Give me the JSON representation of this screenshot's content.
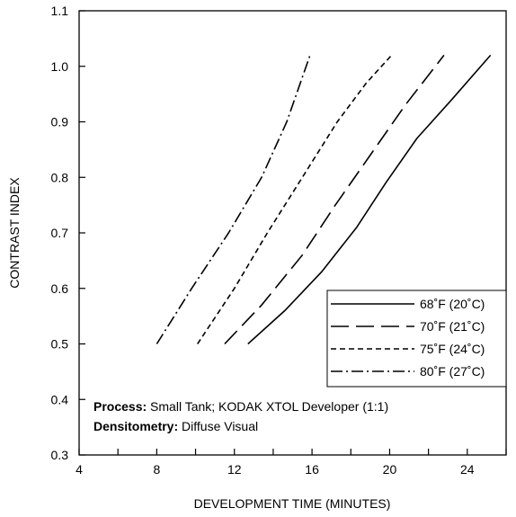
{
  "chart_data": {
    "type": "line",
    "title": "",
    "xlabel": "DEVELOPMENT TIME (MINUTES)",
    "ylabel": "CONTRAST INDEX",
    "xlim": [
      4,
      26
    ],
    "ylim": [
      0.3,
      1.1
    ],
    "x_ticks": [
      4,
      6,
      8,
      10,
      12,
      14,
      16,
      18,
      20,
      22,
      24,
      26
    ],
    "x_tick_labels": [
      "4",
      "",
      "8",
      "",
      "12",
      "",
      "16",
      "",
      "20",
      "",
      "24",
      ""
    ],
    "y_ticks": [
      0.3,
      0.4,
      0.5,
      0.6,
      0.7,
      0.8,
      0.9,
      1.0,
      1.1
    ],
    "y_tick_labels": [
      "0.3",
      "0.4",
      "0.5",
      "0.6",
      "0.7",
      "0.8",
      "0.9",
      "1.0",
      "1.1"
    ],
    "grid": false,
    "legend_position": "bottom-right",
    "series": [
      {
        "name": "68˚F (20˚C)",
        "style": "solid",
        "x": [
          12.7,
          14.6,
          16.5,
          18.3,
          19.8,
          21.4,
          23.2,
          25.2
        ],
        "y": [
          0.5,
          0.56,
          0.63,
          0.71,
          0.79,
          0.87,
          0.94,
          1.02
        ]
      },
      {
        "name": "70˚F (21˚C)",
        "style": "long-dash",
        "x": [
          11.5,
          13.4,
          15.5,
          17.2,
          19.0,
          20.8,
          22.8
        ],
        "y": [
          0.5,
          0.57,
          0.66,
          0.75,
          0.84,
          0.93,
          1.02
        ]
      },
      {
        "name": "75˚F (24˚C)",
        "style": "short-dash",
        "x": [
          10.1,
          12.0,
          13.7,
          15.5,
          17.3,
          18.8,
          20.1
        ],
        "y": [
          0.5,
          0.6,
          0.7,
          0.8,
          0.9,
          0.97,
          1.02
        ]
      },
      {
        "name": "80˚F (27˚C)",
        "style": "dash-dot",
        "x": [
          8.0,
          9.8,
          11.7,
          13.4,
          14.7,
          15.9
        ],
        "y": [
          0.5,
          0.6,
          0.7,
          0.8,
          0.9,
          1.02
        ]
      }
    ],
    "annotations": [
      {
        "bold": "Process:",
        "text": " Small Tank; KODAK XTOL Developer (1:1)"
      },
      {
        "bold": "Densitometry:",
        "text": " Diffuse Visual"
      }
    ]
  }
}
